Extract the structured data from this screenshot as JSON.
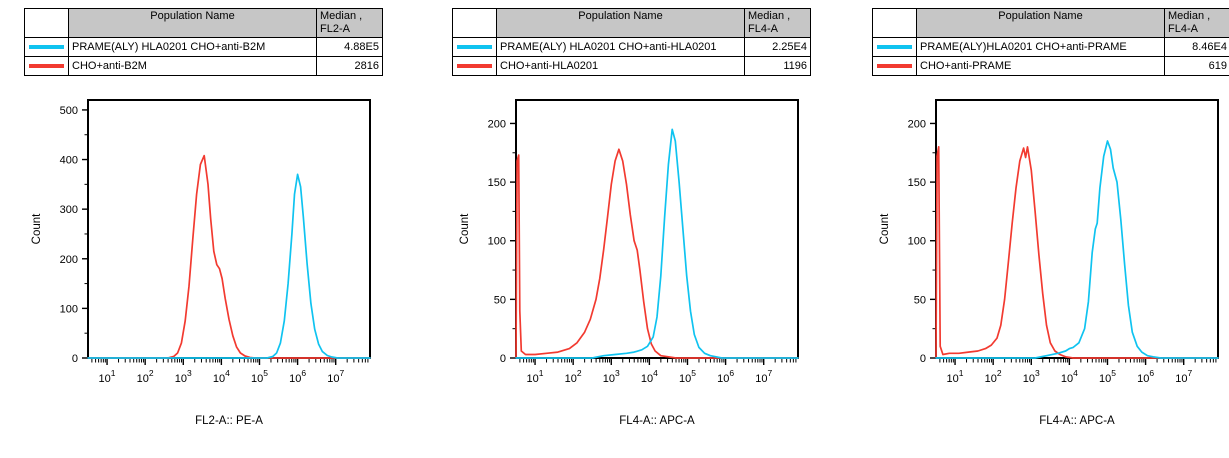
{
  "colors": {
    "cyan_series": "#0fc3f0",
    "red_series": "#f23a30",
    "table_header_bg": "#c6c6c6",
    "axis": "#000000",
    "background": "#ffffff"
  },
  "panels": [
    {
      "table": {
        "headers": {
          "swatch": "",
          "population": "Population Name",
          "median_line1": "Median ,",
          "median_line2": "FL2-A"
        },
        "rows": [
          {
            "series_color": "#0fc3f0",
            "population": "PRAME(ALY) HLA0201 CHO+anti-B2M",
            "median": "4.88E5"
          },
          {
            "series_color": "#f23a30",
            "population": "CHO+anti-B2M",
            "median": "2816"
          }
        ]
      },
      "chart_data": {
        "type": "line",
        "subtype": "flow-cytometry-histogram",
        "x_scale": "log10",
        "xlabel": "FL2-A:: PE-A",
        "ylabel": "Count",
        "xlim_log10": [
          0.5,
          7.9
        ],
        "ylim": [
          0,
          520
        ],
        "yticks": [
          0,
          100,
          200,
          300,
          400,
          500
        ],
        "xtick_exponents": [
          1,
          2,
          3,
          4,
          5,
          6,
          7
        ],
        "grid": false,
        "legend_position": "none",
        "series": [
          {
            "name": "PRAME(ALY) HLA0201 CHO+anti-B2M",
            "color": "#0fc3f0",
            "median": "4.88E5",
            "points_log10x_count": [
              [
                0.5,
                0
              ],
              [
                5.2,
                0
              ],
              [
                5.35,
                3
              ],
              [
                5.45,
                10
              ],
              [
                5.55,
                30
              ],
              [
                5.65,
                75
              ],
              [
                5.75,
                150
              ],
              [
                5.85,
                250
              ],
              [
                5.92,
                330
              ],
              [
                6.0,
                370
              ],
              [
                6.08,
                345
              ],
              [
                6.15,
                285
              ],
              [
                6.25,
                190
              ],
              [
                6.35,
                110
              ],
              [
                6.45,
                58
              ],
              [
                6.55,
                28
              ],
              [
                6.65,
                13
              ],
              [
                6.78,
                5
              ],
              [
                6.9,
                2
              ],
              [
                7.05,
                0
              ],
              [
                7.9,
                0
              ]
            ]
          },
          {
            "name": "CHO+anti-B2M",
            "color": "#f23a30",
            "median": "2816",
            "points_log10x_count": [
              [
                0.5,
                0
              ],
              [
                2.6,
                0
              ],
              [
                2.75,
                3
              ],
              [
                2.85,
                10
              ],
              [
                2.95,
                30
              ],
              [
                3.05,
                75
              ],
              [
                3.15,
                145
              ],
              [
                3.25,
                240
              ],
              [
                3.35,
                330
              ],
              [
                3.45,
                390
              ],
              [
                3.55,
                408
              ],
              [
                3.65,
                350
              ],
              [
                3.72,
                280
              ],
              [
                3.8,
                215
              ],
              [
                3.88,
                188
              ],
              [
                3.95,
                180
              ],
              [
                4.02,
                160
              ],
              [
                4.1,
                120
              ],
              [
                4.2,
                78
              ],
              [
                4.3,
                45
              ],
              [
                4.4,
                22
              ],
              [
                4.5,
                10
              ],
              [
                4.62,
                4
              ],
              [
                4.75,
                1
              ],
              [
                4.9,
                0
              ],
              [
                7.9,
                0
              ]
            ]
          }
        ]
      }
    },
    {
      "table": {
        "headers": {
          "swatch": "",
          "population": "Population Name",
          "median_line1": "Median ,",
          "median_line2": "FL4-A"
        },
        "rows": [
          {
            "series_color": "#0fc3f0",
            "population": "PRAME(ALY) HLA0201 CHO+anti-HLA0201",
            "median": "2.25E4"
          },
          {
            "series_color": "#f23a30",
            "population": "CHO+anti-HLA0201",
            "median": "1196"
          }
        ]
      },
      "chart_data": {
        "type": "line",
        "subtype": "flow-cytometry-histogram",
        "x_scale": "log10",
        "xlabel": "FL4-A:: APC-A",
        "ylabel": "Count",
        "xlim_log10": [
          0.5,
          7.9
        ],
        "ylim": [
          0,
          220
        ],
        "yticks": [
          0,
          50,
          100,
          150,
          200
        ],
        "xtick_exponents": [
          1,
          2,
          3,
          4,
          5,
          6,
          7
        ],
        "grid": false,
        "legend_position": "none",
        "series": [
          {
            "name": "PRAME(ALY) HLA0201 CHO+anti-HLA0201",
            "color": "#0fc3f0",
            "median": "2.25E4",
            "points_log10x_count": [
              [
                0.5,
                0
              ],
              [
                2.5,
                0
              ],
              [
                2.8,
                2
              ],
              [
                3.1,
                3
              ],
              [
                3.4,
                4
              ],
              [
                3.6,
                5
              ],
              [
                3.8,
                7
              ],
              [
                3.95,
                10
              ],
              [
                4.1,
                18
              ],
              [
                4.2,
                35
              ],
              [
                4.3,
                70
              ],
              [
                4.4,
                120
              ],
              [
                4.5,
                165
              ],
              [
                4.6,
                195
              ],
              [
                4.68,
                185
              ],
              [
                4.78,
                150
              ],
              [
                4.88,
                110
              ],
              [
                4.98,
                70
              ],
              [
                5.08,
                40
              ],
              [
                5.18,
                20
              ],
              [
                5.3,
                9
              ],
              [
                5.45,
                4
              ],
              [
                5.6,
                2
              ],
              [
                5.75,
                1
              ],
              [
                5.9,
                0
              ],
              [
                7.9,
                0
              ]
            ]
          },
          {
            "name": "CHO+anti-HLA0201",
            "color": "#f23a30",
            "median": "1196",
            "points_log10x_count": [
              [
                0.5,
                0
              ],
              [
                0.53,
                168
              ],
              [
                0.57,
                173
              ],
              [
                0.6,
                40
              ],
              [
                0.64,
                6
              ],
              [
                0.75,
                3
              ],
              [
                1.0,
                3
              ],
              [
                1.3,
                4
              ],
              [
                1.6,
                5
              ],
              [
                1.9,
                8
              ],
              [
                2.1,
                13
              ],
              [
                2.3,
                22
              ],
              [
                2.45,
                33
              ],
              [
                2.6,
                50
              ],
              [
                2.7,
                68
              ],
              [
                2.8,
                92
              ],
              [
                2.9,
                120
              ],
              [
                3.0,
                148
              ],
              [
                3.1,
                168
              ],
              [
                3.2,
                178
              ],
              [
                3.3,
                168
              ],
              [
                3.4,
                148
              ],
              [
                3.5,
                122
              ],
              [
                3.6,
                100
              ],
              [
                3.68,
                92
              ],
              [
                3.75,
                75
              ],
              [
                3.85,
                48
              ],
              [
                3.95,
                25
              ],
              [
                4.05,
                12
              ],
              [
                4.15,
                6
              ],
              [
                4.3,
                2
              ],
              [
                4.5,
                1
              ],
              [
                4.7,
                0
              ],
              [
                7.9,
                0
              ]
            ]
          }
        ]
      }
    },
    {
      "table": {
        "headers": {
          "swatch": "",
          "population": "Population Name",
          "median_line1": "Median ,",
          "median_line2": "FL4-A"
        },
        "rows": [
          {
            "series_color": "#0fc3f0",
            "population": "PRAME(ALY)HLA0201 CHO+anti-PRAME",
            "median": "8.46E4"
          },
          {
            "series_color": "#f23a30",
            "population": "CHO+anti-PRAME",
            "median": "619"
          }
        ]
      },
      "chart_data": {
        "type": "line",
        "subtype": "flow-cytometry-histogram",
        "x_scale": "log10",
        "xlabel": "FL4-A:: APC-A",
        "ylabel": "Count",
        "xlim_log10": [
          0.5,
          7.9
        ],
        "ylim": [
          0,
          220
        ],
        "yticks": [
          0,
          50,
          100,
          150,
          200
        ],
        "xtick_exponents": [
          1,
          2,
          3,
          4,
          5,
          6,
          7
        ],
        "grid": false,
        "legend_position": "none",
        "series": [
          {
            "name": "PRAME(ALY)HLA0201 CHO+anti-PRAME",
            "color": "#0fc3f0",
            "median": "8.46E4",
            "points_log10x_count": [
              [
                0.5,
                0
              ],
              [
                3.1,
                0
              ],
              [
                3.4,
                2
              ],
              [
                3.7,
                4
              ],
              [
                3.9,
                6
              ],
              [
                4.0,
                8
              ],
              [
                4.1,
                9
              ],
              [
                4.25,
                13
              ],
              [
                4.4,
                25
              ],
              [
                4.5,
                48
              ],
              [
                4.6,
                90
              ],
              [
                4.68,
                110
              ],
              [
                4.73,
                115
              ],
              [
                4.8,
                145
              ],
              [
                4.9,
                172
              ],
              [
                5.0,
                185
              ],
              [
                5.08,
                178
              ],
              [
                5.15,
                162
              ],
              [
                5.25,
                150
              ],
              [
                5.35,
                118
              ],
              [
                5.45,
                80
              ],
              [
                5.55,
                45
              ],
              [
                5.65,
                22
              ],
              [
                5.78,
                10
              ],
              [
                5.9,
                5
              ],
              [
                6.05,
                2
              ],
              [
                6.2,
                1
              ],
              [
                6.4,
                0
              ],
              [
                7.9,
                0
              ]
            ]
          },
          {
            "name": "CHO+anti-PRAME",
            "color": "#f23a30",
            "median": "619",
            "points_log10x_count": [
              [
                0.5,
                0
              ],
              [
                0.53,
                172
              ],
              [
                0.57,
                180
              ],
              [
                0.61,
                10
              ],
              [
                0.68,
                3
              ],
              [
                0.85,
                4
              ],
              [
                1.1,
                4
              ],
              [
                1.35,
                5
              ],
              [
                1.6,
                6
              ],
              [
                1.8,
                8
              ],
              [
                1.95,
                11
              ],
              [
                2.1,
                17
              ],
              [
                2.2,
                28
              ],
              [
                2.3,
                50
              ],
              [
                2.4,
                82
              ],
              [
                2.5,
                115
              ],
              [
                2.6,
                145
              ],
              [
                2.7,
                168
              ],
              [
                2.8,
                179
              ],
              [
                2.85,
                171
              ],
              [
                2.9,
                180
              ],
              [
                3.0,
                160
              ],
              [
                3.1,
                125
              ],
              [
                3.2,
                88
              ],
              [
                3.3,
                55
              ],
              [
                3.4,
                28
              ],
              [
                3.5,
                13
              ],
              [
                3.62,
                6
              ],
              [
                3.75,
                3
              ],
              [
                3.9,
                1
              ],
              [
                4.1,
                0
              ],
              [
                7.9,
                0
              ]
            ]
          }
        ]
      }
    }
  ]
}
